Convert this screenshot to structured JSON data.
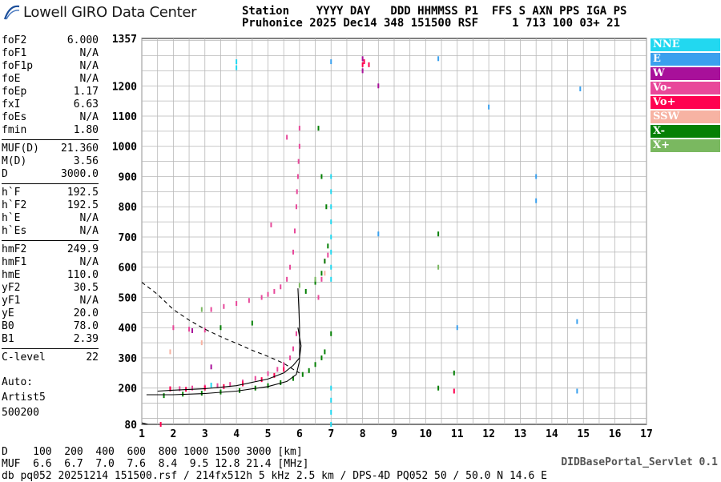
{
  "logo_text": "Lowell GIRO Data Center",
  "header": {
    "line1": "Station    YYYY DAY   DDD HHMMSS P1  FFS S AXN PPS IGA PS",
    "line2": "Pruhonice 2025 Dec14 348 151500 RSF     1 713 100 03+ 21"
  },
  "params": [
    {
      "name": "foF2",
      "value": "6.000"
    },
    {
      "name": "foF1",
      "value": "N/A"
    },
    {
      "name": "foF1p",
      "value": "N/A"
    },
    {
      "name": "foE",
      "value": "N/A"
    },
    {
      "name": "foEp",
      "value": "1.17"
    },
    {
      "name": "fxI",
      "value": "6.63"
    },
    {
      "name": "foEs",
      "value": "N/A"
    },
    {
      "name": "fmin",
      "value": "1.80"
    },
    {
      "name": "MUF(D)",
      "value": "21.360"
    },
    {
      "name": "M(D)",
      "value": "3.56"
    },
    {
      "name": "D",
      "value": "3000.0"
    },
    {
      "name": "h`F",
      "value": "192.5"
    },
    {
      "name": "h`F2",
      "value": "192.5"
    },
    {
      "name": "h`E",
      "value": "N/A"
    },
    {
      "name": "h`Es",
      "value": "N/A"
    },
    {
      "name": "hmF2",
      "value": "249.9"
    },
    {
      "name": "hmF1",
      "value": "N/A"
    },
    {
      "name": "hmE",
      "value": "110.0"
    },
    {
      "name": "yF2",
      "value": "30.5"
    },
    {
      "name": "yF1",
      "value": "N/A"
    },
    {
      "name": "yE",
      "value": "20.0"
    },
    {
      "name": "B0",
      "value": "78.0"
    },
    {
      "name": "B1",
      "value": "2.39"
    },
    {
      "name": "C-level",
      "value": "22"
    }
  ],
  "auto": {
    "label": "Auto:",
    "artist": "Artist5",
    "version": "500200"
  },
  "legend": [
    {
      "label": "NNE",
      "color": "#22d8f0"
    },
    {
      "label": "E",
      "color": "#3aa0ee"
    },
    {
      "label": "W",
      "color": "#a8109a"
    },
    {
      "label": "Vo-",
      "color": "#e8489a"
    },
    {
      "label": "Vo+",
      "color": "#ff0050"
    },
    {
      "label": "SSW",
      "color": "#f7b3a3"
    },
    {
      "label": "X-",
      "color": "#058005"
    },
    {
      "label": "X+",
      "color": "#7ab860"
    }
  ],
  "bottom": {
    "d_row": "D    100  200  400  600  800 1000 1500 3000 [km]",
    "muf_row": "MUF  6.6  6.7  7.0  7.6  8.4  9.5 12.8 21.4 [MHz]",
    "file_line": "db pq052 20251214 151500.rsf / 214fx512h 5 kHz 2.5 km / DPS-4D PQ052 50 / 50.0 N 14.6 E"
  },
  "servlet": "DIDBasePortal_Servlet 0.1",
  "chart_data": {
    "type": "scatter",
    "xlabel": "",
    "ylabel": "",
    "xlim": [
      1,
      17
    ],
    "ylim": [
      80,
      1357
    ],
    "x_ticks": [
      1,
      2,
      3,
      4,
      5,
      6,
      7,
      8,
      9,
      10,
      11,
      12,
      13,
      14,
      15,
      16,
      17
    ],
    "y_ticks": [
      80,
      200,
      300,
      400,
      500,
      600,
      700,
      800,
      900,
      1000,
      1100,
      1200,
      1357
    ],
    "series": [
      {
        "name": "Vo-",
        "color": "#e8489a",
        "points": [
          [
            1.9,
            198
          ],
          [
            2.2,
            198
          ],
          [
            2.6,
            200
          ],
          [
            3.0,
            203
          ],
          [
            3.4,
            208
          ],
          [
            3.8,
            212
          ],
          [
            4.2,
            220
          ],
          [
            4.6,
            232
          ],
          [
            5.0,
            248
          ],
          [
            5.3,
            262
          ],
          [
            5.5,
            278
          ],
          [
            5.7,
            300
          ],
          [
            5.8,
            330
          ],
          [
            5.9,
            380
          ],
          [
            3.2,
            460
          ],
          [
            3.6,
            470
          ],
          [
            4.0,
            480
          ],
          [
            4.4,
            490
          ],
          [
            4.8,
            500
          ],
          [
            5.0,
            510
          ],
          [
            5.2,
            520
          ],
          [
            5.4,
            535
          ],
          [
            5.6,
            560
          ],
          [
            5.7,
            600
          ],
          [
            5.8,
            650
          ],
          [
            5.85,
            720
          ],
          [
            5.9,
            800
          ],
          [
            5.92,
            850
          ],
          [
            5.95,
            900
          ],
          [
            5.97,
            950
          ],
          [
            6.0,
            1000
          ],
          [
            6.0,
            1060
          ],
          [
            5.6,
            1030
          ],
          [
            5.1,
            740
          ],
          [
            2.0,
            400
          ],
          [
            2.5,
            395
          ],
          [
            3.0,
            392
          ],
          [
            6.6,
            500
          ],
          [
            6.7,
            560
          ],
          [
            6.8,
            620
          ],
          [
            6.9,
            640
          ]
        ]
      },
      {
        "name": "Vo+",
        "color": "#ff0050",
        "points": [
          [
            1.6,
            80
          ],
          [
            1.9,
            197
          ],
          [
            2.4,
            196
          ],
          [
            3.0,
            200
          ],
          [
            3.6,
            205
          ],
          [
            4.2,
            214
          ],
          [
            4.8,
            228
          ],
          [
            5.2,
            242
          ],
          [
            5.5,
            262
          ],
          [
            8.0,
            1270
          ],
          [
            8.05,
            1280
          ],
          [
            8.2,
            1270
          ],
          [
            10.9,
            190
          ]
        ]
      },
      {
        "name": "W",
        "color": "#a8109a",
        "points": [
          [
            8.0,
            1250
          ],
          [
            8.0,
            1290
          ],
          [
            8.5,
            1200
          ],
          [
            2.6,
            390
          ],
          [
            3.2,
            270
          ]
        ]
      },
      {
        "name": "X-",
        "color": "#058005",
        "points": [
          [
            1.7,
            175
          ],
          [
            2.3,
            180
          ],
          [
            2.9,
            183
          ],
          [
            3.5,
            187
          ],
          [
            4.1,
            192
          ],
          [
            4.6,
            200
          ],
          [
            5.0,
            208
          ],
          [
            5.4,
            218
          ],
          [
            5.8,
            232
          ],
          [
            6.1,
            245
          ],
          [
            6.3,
            258
          ],
          [
            6.5,
            278
          ],
          [
            6.7,
            300
          ],
          [
            6.8,
            320
          ],
          [
            6.2,
            520
          ],
          [
            6.5,
            550
          ],
          [
            6.7,
            580
          ],
          [
            6.8,
            620
          ],
          [
            6.9,
            670
          ],
          [
            6.85,
            800
          ],
          [
            6.7,
            900
          ],
          [
            6.6,
            1060
          ],
          [
            7.0,
            380
          ],
          [
            10.4,
            710
          ],
          [
            10.4,
            200
          ],
          [
            10.9,
            250
          ],
          [
            3.5,
            400
          ],
          [
            4.5,
            415
          ]
        ]
      },
      {
        "name": "X+",
        "color": "#7ab860",
        "points": [
          [
            6.0,
            540
          ],
          [
            6.5,
            560
          ],
          [
            10.4,
            600
          ],
          [
            2.9,
            460
          ]
        ]
      },
      {
        "name": "NNE",
        "color": "#22d8f0",
        "points": [
          [
            7.0,
            80
          ],
          [
            7.0,
            120
          ],
          [
            7.0,
            160
          ],
          [
            7.0,
            200
          ],
          [
            7.0,
            560
          ],
          [
            7.0,
            600
          ],
          [
            7.0,
            650
          ],
          [
            7.0,
            700
          ],
          [
            7.0,
            750
          ],
          [
            7.0,
            800
          ],
          [
            7.0,
            850
          ],
          [
            7.0,
            900
          ],
          [
            4.0,
            1260
          ],
          [
            4.0,
            1280
          ],
          [
            3.2,
            210
          ]
        ]
      },
      {
        "name": "E",
        "color": "#3aa0ee",
        "points": [
          [
            7.0,
            1280
          ],
          [
            10.4,
            1290
          ],
          [
            12.0,
            1130
          ],
          [
            13.5,
            900
          ],
          [
            13.5,
            820
          ],
          [
            14.8,
            420
          ],
          [
            14.8,
            190
          ],
          [
            14.9,
            1190
          ],
          [
            11.0,
            400
          ],
          [
            8.5,
            710
          ]
        ]
      },
      {
        "name": "SSW",
        "color": "#f7b3a3",
        "points": [
          [
            1.9,
            320
          ],
          [
            2.9,
            350
          ],
          [
            6.8,
            580
          ]
        ]
      }
    ],
    "curves": {
      "profile_solid": [
        [
          1.15,
          178
        ],
        [
          2.0,
          178
        ],
        [
          3.0,
          182
        ],
        [
          4.0,
          190
        ],
        [
          5.0,
          205
        ],
        [
          5.6,
          222
        ],
        [
          5.9,
          245
        ],
        [
          6.0,
          290
        ],
        [
          6.0,
          400
        ],
        [
          5.98,
          460
        ],
        [
          5.95,
          530
        ]
      ],
      "trace_solid": [
        [
          1.5,
          190
        ],
        [
          2.0,
          193
        ],
        [
          3.0,
          198
        ],
        [
          4.0,
          208
        ],
        [
          5.0,
          230
        ],
        [
          5.5,
          250
        ],
        [
          5.8,
          275
        ],
        [
          6.0,
          300
        ],
        [
          6.05,
          340
        ],
        [
          5.95,
          400
        ]
      ],
      "bent_trace_dashed": [
        [
          1.0,
          550
        ],
        [
          1.5,
          510
        ],
        [
          2.0,
          460
        ],
        [
          2.5,
          425
        ],
        [
          3.0,
          395
        ],
        [
          3.5,
          370
        ],
        [
          4.0,
          348
        ],
        [
          4.5,
          325
        ],
        [
          5.0,
          305
        ],
        [
          5.5,
          282
        ],
        [
          5.8,
          262
        ],
        [
          6.0,
          250
        ]
      ],
      "low_trace_solid": [
        [
          1.0,
          85
        ],
        [
          1.2,
          80
        ]
      ]
    }
  }
}
